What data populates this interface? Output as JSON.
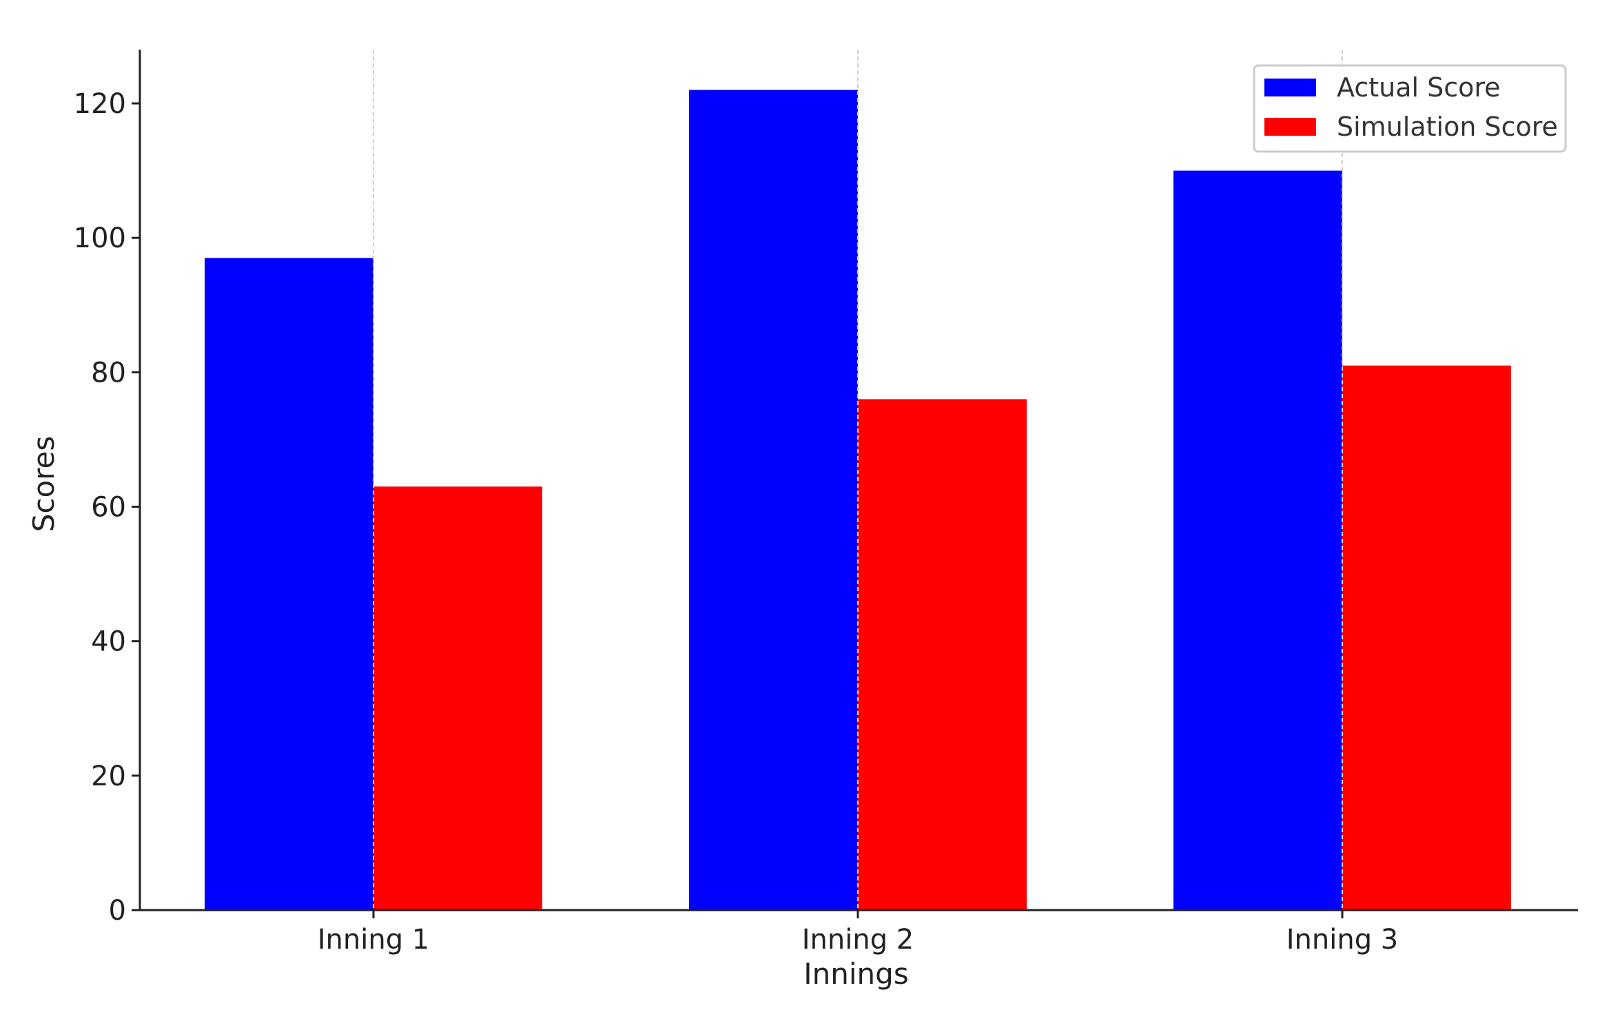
{
  "chart_data": {
    "type": "bar",
    "title": "",
    "xlabel": "Innings",
    "ylabel": "Scores",
    "categories": [
      "Inning 1",
      "Inning 2",
      "Inning 3"
    ],
    "series": [
      {
        "name": "Actual Score",
        "color": "#0000ff",
        "values": [
          97,
          122,
          110
        ]
      },
      {
        "name": "Simulation Score",
        "color": "#ff0000",
        "values": [
          63,
          76,
          81
        ]
      }
    ],
    "ylim": [
      0,
      128
    ],
    "yticks": [
      0,
      20,
      40,
      60,
      80,
      100,
      120
    ],
    "grid": "x-dashed",
    "legend_position": "top-right"
  }
}
